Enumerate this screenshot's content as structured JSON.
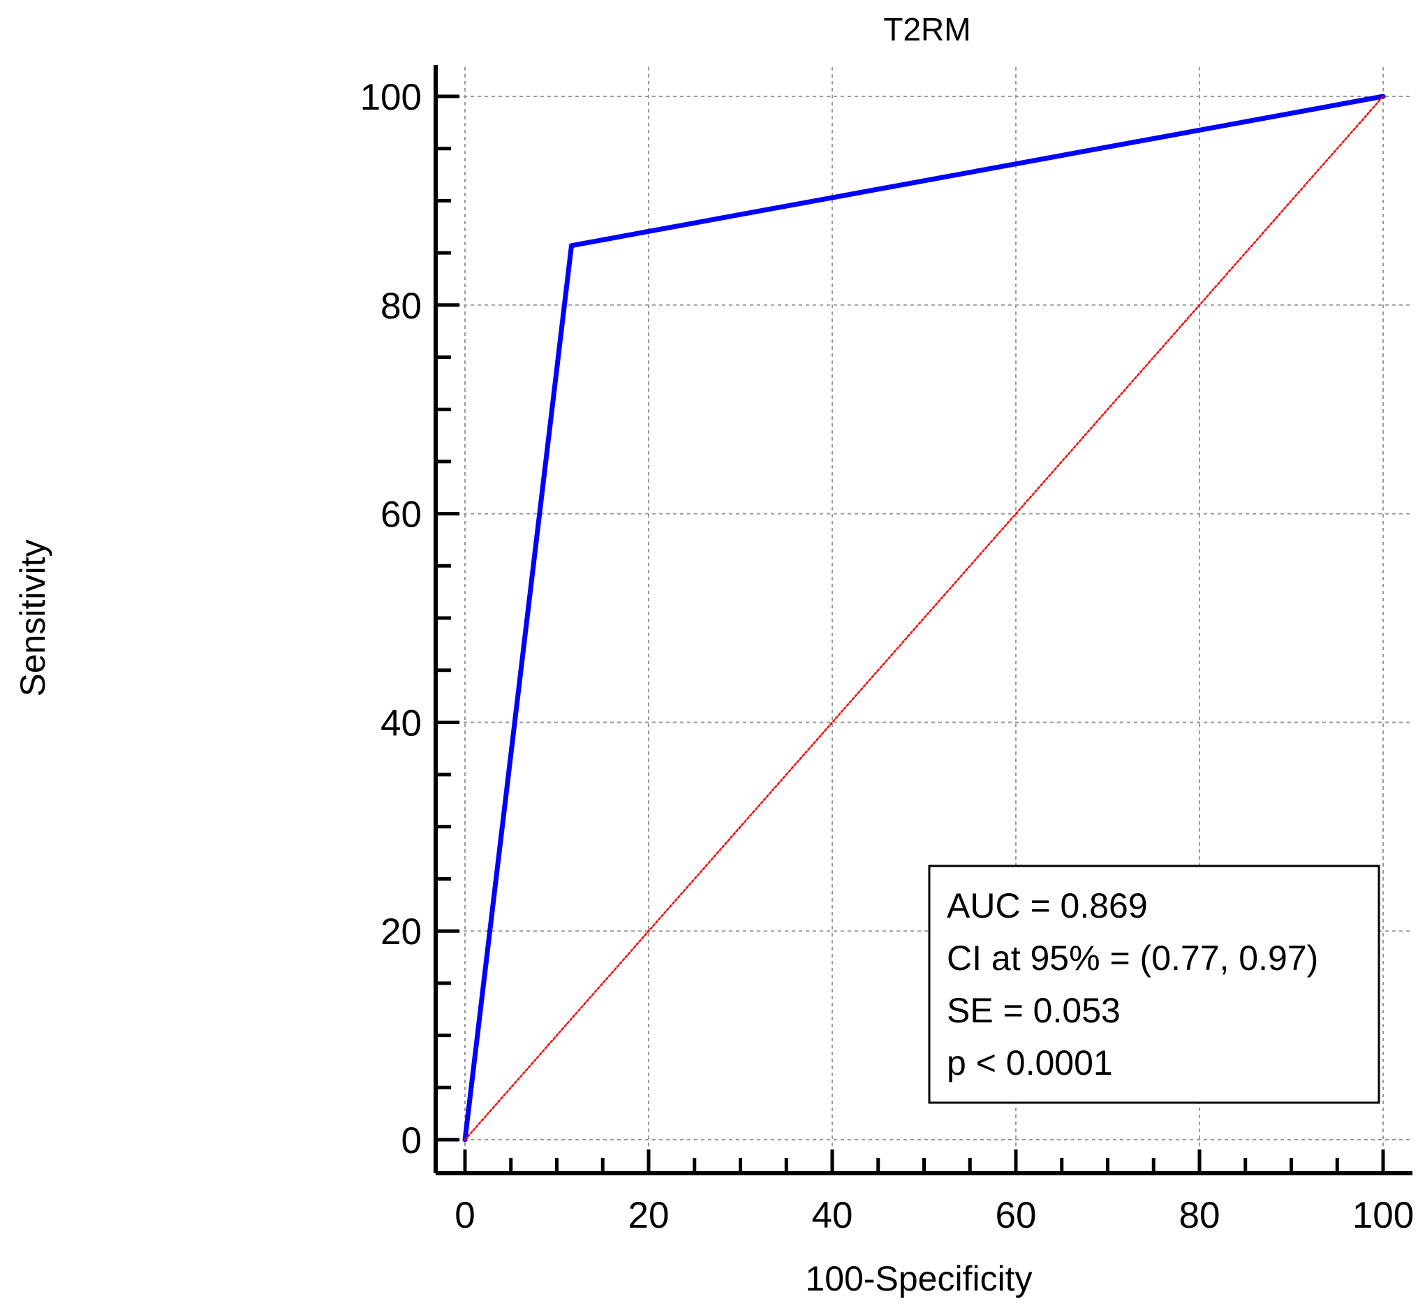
{
  "chart_data": {
    "type": "line",
    "title": "T2RM",
    "xlabel": "100-Specificity",
    "ylabel": "Sensitivity",
    "xlim": [
      0,
      100
    ],
    "ylim": [
      0,
      100
    ],
    "x_ticks": [
      0,
      20,
      40,
      60,
      80,
      100
    ],
    "y_ticks": [
      0,
      20,
      40,
      60,
      80,
      100
    ],
    "x_minor_step": 5,
    "y_minor_step": 5,
    "grid": true,
    "series": [
      {
        "x": [
          0,
          11.6,
          100
        ],
        "y": [
          0,
          85.7,
          100
        ],
        "color": "#0000ff",
        "style": "solid"
      },
      {
        "x": [
          0,
          100
        ],
        "y": [
          0,
          100
        ],
        "color": "#ff0000",
        "style": "dotted"
      }
    ],
    "legend_position": "bottom-right",
    "annotations": [
      "AUC = 0.869",
      "CI at 95% = (0.77, 0.97)",
      "SE = 0.053",
      "p < 0.0001"
    ]
  }
}
